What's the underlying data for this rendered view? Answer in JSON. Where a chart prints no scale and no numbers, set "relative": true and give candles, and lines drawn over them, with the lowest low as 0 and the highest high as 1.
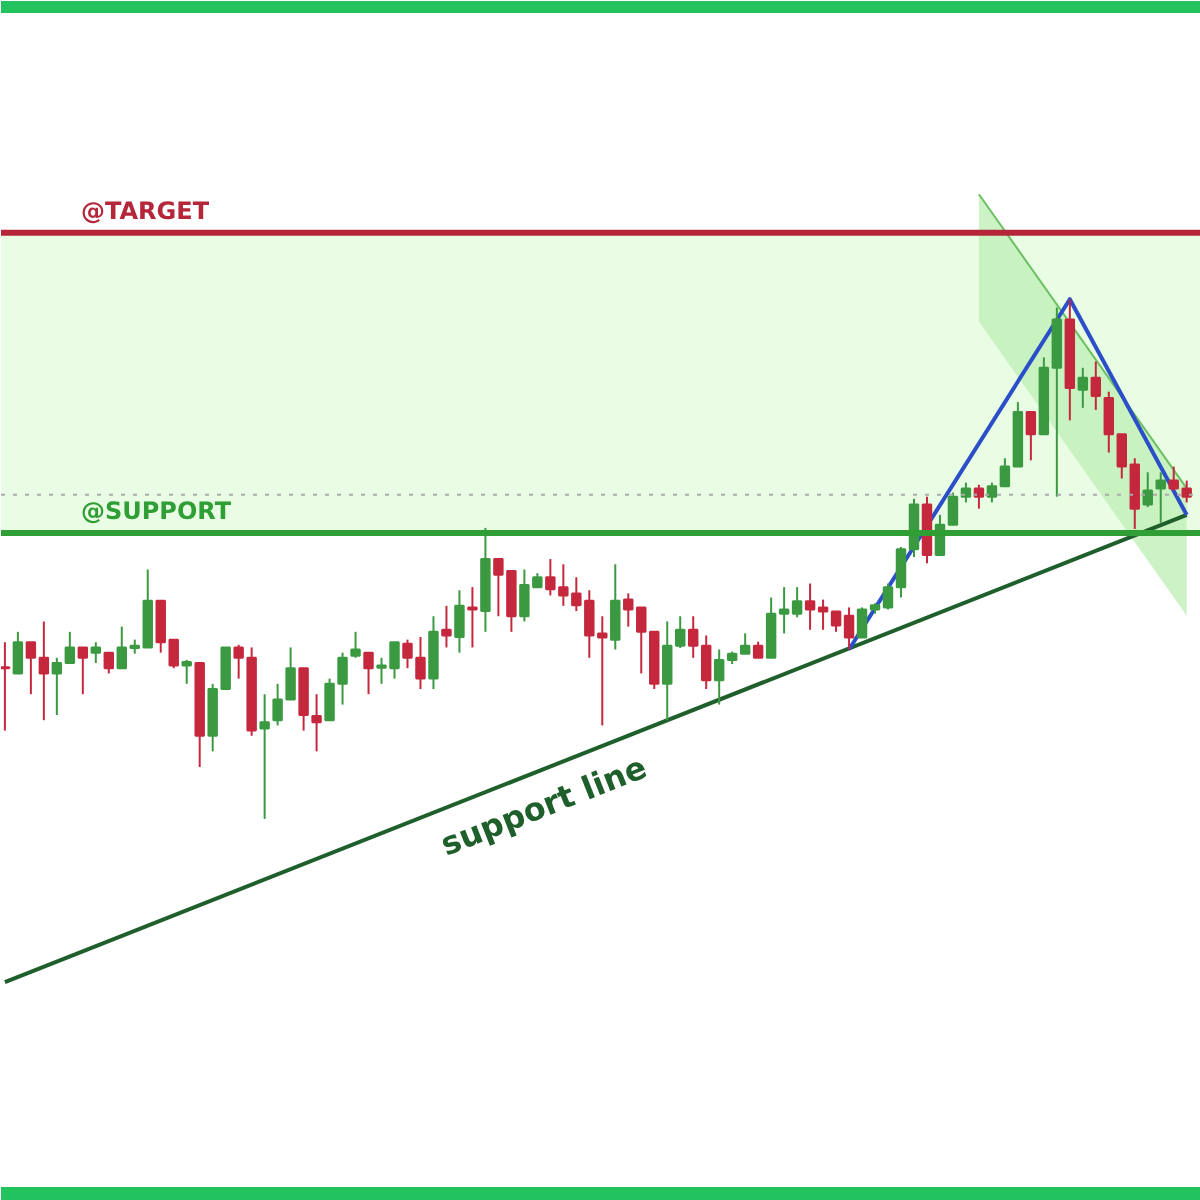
{
  "chart_data": {
    "type": "candlestick",
    "relative": true,
    "categories": [
      null,
      null,
      null,
      null,
      null,
      null,
      null,
      null,
      null,
      null,
      null,
      null,
      null,
      null,
      null,
      null,
      null,
      null,
      null,
      null,
      null,
      null,
      null,
      null,
      null,
      null,
      null,
      null,
      null,
      null,
      null,
      null,
      null,
      null,
      null,
      null,
      null,
      null,
      null,
      null,
      null,
      null,
      null,
      null,
      null,
      null,
      null,
      null,
      null,
      null,
      null,
      null,
      null,
      null,
      null,
      null,
      null,
      null,
      null,
      null,
      null,
      null,
      null,
      null,
      null,
      null,
      null,
      null,
      null,
      null,
      null,
      null,
      null,
      null,
      null,
      null,
      null,
      null,
      null,
      null,
      null,
      null,
      null,
      null,
      null,
      null,
      null,
      null,
      null,
      null,
      null,
      null
    ],
    "ohlc": [
      [
        0.292,
        0.34,
        0.17,
        0.29
      ],
      [
        0.28,
        0.36,
        0.28,
        0.34
      ],
      [
        0.34,
        0.34,
        0.24,
        0.31
      ],
      [
        0.31,
        0.38,
        0.19,
        0.28
      ],
      [
        0.28,
        0.31,
        0.2,
        0.3
      ],
      [
        0.3,
        0.36,
        0.3,
        0.33
      ],
      [
        0.33,
        0.33,
        0.24,
        0.31
      ],
      [
        0.32,
        0.34,
        0.3,
        0.33
      ],
      [
        0.32,
        0.32,
        0.28,
        0.29
      ],
      [
        0.29,
        0.37,
        0.29,
        0.33
      ],
      [
        0.329,
        0.345,
        0.318,
        0.333
      ],
      [
        0.33,
        0.48,
        0.33,
        0.42
      ],
      [
        0.42,
        0.42,
        0.32,
        0.34
      ],
      [
        0.345,
        0.345,
        0.29,
        0.295
      ],
      [
        0.295,
        0.306,
        0.26,
        0.302
      ],
      [
        0.3,
        0.3,
        0.1,
        0.16
      ],
      [
        0.16,
        0.26,
        0.13,
        0.25
      ],
      [
        0.25,
        0.33,
        0.25,
        0.33
      ],
      [
        0.33,
        0.335,
        0.27,
        0.31
      ],
      [
        0.31,
        0.33,
        0.16,
        0.17
      ],
      [
        0.174,
        0.24,
        0,
        0.186
      ],
      [
        0.19,
        0.26,
        0.18,
        0.23
      ],
      [
        0.23,
        0.33,
        0.23,
        0.29
      ],
      [
        0.29,
        0.29,
        0.17,
        0.2
      ],
      [
        0.198,
        0.24,
        0.13,
        0.186
      ],
      [
        0.19,
        0.27,
        0.19,
        0.26
      ],
      [
        0.26,
        0.32,
        0.22,
        0.31
      ],
      [
        0.314,
        0.36,
        0.31,
        0.326
      ],
      [
        0.32,
        0.32,
        0.24,
        0.29
      ],
      [
        0.291,
        0.31,
        0.26,
        0.295
      ],
      [
        0.29,
        0.34,
        0.27,
        0.34
      ],
      [
        0.337,
        0.345,
        0.29,
        0.31
      ],
      [
        0.31,
        0.35,
        0.25,
        0.27
      ],
      [
        0.27,
        0.39,
        0.25,
        0.36
      ],
      [
        0.364,
        0.41,
        0.33,
        0.353
      ],
      [
        0.35,
        0.44,
        0.32,
        0.41
      ],
      [
        0.407,
        0.446,
        0.33,
        0.403
      ],
      [
        0.4,
        0.56,
        0.36,
        0.5
      ],
      [
        0.5,
        0.5,
        0.39,
        0.47
      ],
      [
        0.477,
        0.477,
        0.36,
        0.39
      ],
      [
        0.39,
        0.48,
        0.38,
        0.45
      ],
      [
        0.446,
        0.473,
        0.446,
        0.465
      ],
      [
        0.465,
        0.5,
        0.43,
        0.442
      ],
      [
        0.446,
        0.49,
        0.41,
        0.43
      ],
      [
        0.434,
        0.465,
        0.4,
        0.411
      ],
      [
        0.42,
        0.44,
        0.31,
        0.353
      ],
      [
        0.357,
        0.39,
        0.18,
        0.349
      ],
      [
        0.345,
        0.49,
        0.326,
        0.42
      ],
      [
        0.422,
        0.434,
        0.37,
        0.403
      ],
      [
        0.407,
        0.407,
        0.28,
        0.36
      ],
      [
        0.36,
        0.36,
        0.25,
        0.26
      ],
      [
        0.26,
        0.38,
        0.19,
        0.333
      ],
      [
        0.333,
        0.39,
        0.329,
        0.364
      ],
      [
        0.364,
        0.39,
        0.31,
        0.333
      ],
      [
        0.333,
        0.353,
        0.25,
        0.267
      ],
      [
        0.267,
        0.326,
        0.22,
        0.306
      ],
      [
        0.306,
        0.322,
        0.298,
        0.318
      ],
      [
        0.318,
        0.357,
        0.318,
        0.333
      ],
      [
        0.333,
        0.341,
        0.31,
        0.31
      ],
      [
        0.31,
        0.426,
        0.31,
        0.395
      ],
      [
        0.395,
        0.446,
        0.357,
        0.403
      ],
      [
        0.395,
        0.446,
        0.388,
        0.419
      ],
      [
        0.419,
        0.453,
        0.364,
        0.403
      ],
      [
        0.407,
        0.422,
        0.364,
        0.399
      ],
      [
        0.399,
        0.399,
        0.36,
        0.372
      ],
      [
        0.391,
        0.407,
        0.326,
        0.349
      ],
      [
        0.349,
        0.407,
        0.349,
        0.403
      ],
      [
        0.403,
        0.415,
        0.395,
        0.411
      ],
      [
        0.407,
        0.453,
        0.403,
        0.446
      ],
      [
        0.446,
        0.523,
        0.426,
        0.519
      ],
      [
        0.519,
        0.616,
        0.504,
        0.605
      ],
      [
        0.605,
        0.62,
        0.492,
        0.508
      ],
      [
        0.508,
        0.585,
        0.508,
        0.566
      ],
      [
        0.566,
        0.628,
        0.566,
        0.62
      ],
      [
        0.62,
        0.647,
        0.609,
        0.636
      ],
      [
        0.636,
        0.643,
        0.597,
        0.62
      ],
      [
        0.62,
        0.647,
        0.609,
        0.64
      ],
      [
        0.64,
        0.694,
        0.64,
        0.678
      ],
      [
        0.678,
        0.802,
        0.678,
        0.783
      ],
      [
        0.783,
        0.783,
        0.69,
        0.74
      ],
      [
        0.74,
        0.888,
        0.74,
        0.868
      ],
      [
        0.868,
        0.984,
        0.62,
        0.961
      ],
      [
        0.961,
        1,
        0.767,
        0.829
      ],
      [
        0.826,
        0.868,
        0.791,
        0.849
      ],
      [
        0.849,
        0.88,
        0.787,
        0.814
      ],
      [
        0.81,
        0.822,
        0.705,
        0.74
      ],
      [
        0.74,
        0.74,
        0.655,
        0.678
      ],
      [
        0.682,
        0.694,
        0.558,
        0.597
      ],
      [
        0.605,
        0.667,
        0.6,
        0.632
      ],
      [
        0.636,
        0.667,
        0.57,
        0.651
      ],
      [
        0.651,
        0.678,
        0.632,
        0.636
      ],
      [
        0.636,
        0.651,
        0.609,
        0.62
      ]
    ],
    "colors": [
      "#c5283d",
      "#3b9a41",
      "#c5283d",
      "#c5283d",
      "#3b9a41",
      "#3b9a41",
      "#c5283d",
      "#3b9a41",
      "#c5283d",
      "#3b9a41",
      "#3b9a41",
      "#3b9a41",
      "#c5283d",
      "#c5283d",
      "#3b9a41",
      "#c5283d",
      "#3b9a41",
      "#3b9a41",
      "#c5283d",
      "#c5283d",
      "#3b9a41",
      "#3b9a41",
      "#3b9a41",
      "#c5283d",
      "#c5283d",
      "#3b9a41",
      "#3b9a41",
      "#3b9a41",
      "#c5283d",
      "#3b9a41",
      "#3b9a41",
      "#c5283d",
      "#c5283d",
      "#3b9a41",
      "#c5283d",
      "#3b9a41",
      "#c5283d",
      "#3b9a41",
      "#c5283d",
      "#c5283d",
      "#3b9a41",
      "#3b9a41",
      "#c5283d",
      "#c5283d",
      "#c5283d",
      "#c5283d",
      "#c5283d",
      "#3b9a41",
      "#c5283d",
      "#c5283d",
      "#c5283d",
      "#3b9a41",
      "#3b9a41",
      "#c5283d",
      "#c5283d",
      "#3b9a41",
      "#3b9a41",
      "#3b9a41",
      "#c5283d",
      "#3b9a41",
      "#3b9a41",
      "#3b9a41",
      "#c5283d",
      "#c5283d",
      "#c5283d",
      "#c5283d",
      "#3b9a41",
      "#3b9a41",
      "#3b9a41",
      "#3b9a41",
      "#3b9a41",
      "#c5283d",
      "#3b9a41",
      "#3b9a41",
      "#3b9a41",
      "#c5283d",
      "#3b9a41",
      "#3b9a41",
      "#3b9a41",
      "#c5283d",
      "#3b9a41",
      "#3b9a41",
      "#c5283d",
      "#3b9a41",
      "#c5283d",
      "#c5283d",
      "#c5283d",
      "#c5283d",
      "#3b9a41",
      "#3b9a41",
      "#c5283d",
      "#c5283d"
    ],
    "series": [
      {
        "type": "line",
        "color": "#6dbf63",
        "line_style": "solid",
        "upper": [
          null,
          null,
          null,
          null,
          null,
          null,
          null,
          null,
          null,
          null,
          null,
          null,
          null,
          null,
          null,
          null,
          null,
          null,
          null,
          null,
          null,
          null,
          null,
          null,
          null,
          null,
          null,
          null,
          null,
          null,
          null,
          null,
          null,
          null,
          null,
          null,
          null,
          null,
          null,
          null,
          null,
          null,
          null,
          null,
          null,
          null,
          null,
          null,
          null,
          null,
          null,
          null,
          null,
          null,
          null,
          null,
          null,
          null,
          null,
          null,
          null,
          null,
          null,
          null,
          null,
          null,
          null,
          null,
          null,
          null,
          null,
          null,
          null,
          null,
          null,
          1.202,
          null,
          null,
          null,
          null,
          null,
          null,
          null,
          null,
          null,
          null,
          null,
          null,
          null,
          null,
          null,
          0.636
        ],
        "values": [
          null,
          null,
          null,
          null,
          null,
          null,
          null,
          null,
          null,
          null,
          null,
          null,
          null,
          null,
          null,
          null,
          null,
          null,
          null,
          null,
          null,
          null,
          null,
          null,
          null,
          null,
          null,
          null,
          null,
          null,
          null,
          null,
          null,
          null,
          null,
          null,
          null,
          null,
          null,
          null,
          null,
          null,
          null,
          null,
          null,
          null,
          null,
          null,
          null,
          null,
          null,
          null,
          null,
          null,
          null,
          null,
          null,
          null,
          null,
          null,
          null,
          null,
          null,
          null,
          null,
          null,
          null,
          null,
          null,
          null,
          null,
          null,
          null,
          null,
          null,
          1.202,
          null,
          null,
          null,
          null,
          null,
          null,
          null,
          null,
          null,
          null,
          null,
          null,
          null,
          null,
          null,
          0.636
        ],
        "lower": [
          null,
          null,
          null,
          null,
          null,
          null,
          null,
          null,
          null,
          null,
          null,
          null,
          null,
          null,
          null,
          null,
          null,
          null,
          null,
          null,
          null,
          null,
          null,
          null,
          null,
          null,
          null,
          null,
          null,
          null,
          null,
          null,
          null,
          null,
          null,
          null,
          null,
          null,
          null,
          null,
          null,
          null,
          null,
          null,
          null,
          null,
          null,
          null,
          null,
          null,
          null,
          null,
          null,
          null,
          null,
          null,
          null,
          null,
          null,
          null,
          null,
          null,
          null,
          null,
          null,
          null,
          null,
          null,
          null,
          null,
          null,
          null,
          null,
          null,
          null,
          0.957,
          null,
          null,
          null,
          null,
          null,
          null,
          null,
          null,
          null,
          null,
          null,
          null,
          null,
          null,
          null,
          0.391
        ]
      },
      {
        "type": "line",
        "name": "support line",
        "color": "#1f5f2b",
        "values": [
          -0.314,
          null,
          null,
          null,
          null,
          null,
          null,
          null,
          null,
          null,
          null,
          null,
          null,
          null,
          null,
          null,
          null,
          null,
          null,
          null,
          null,
          null,
          null,
          null,
          null,
          null,
          null,
          null,
          null,
          null,
          null,
          null,
          null,
          null,
          null,
          null,
          null,
          null,
          null,
          null,
          null,
          null,
          null,
          null,
          null,
          null,
          null,
          null,
          null,
          null,
          null,
          null,
          null,
          null,
          null,
          null,
          null,
          null,
          null,
          null,
          null,
          null,
          null,
          null,
          null,
          null,
          null,
          null,
          null,
          null,
          null,
          null,
          null,
          null,
          null,
          null,
          null,
          null,
          null,
          null,
          null,
          null,
          null,
          null,
          null,
          null,
          null,
          null,
          null,
          null,
          null,
          0.585
        ]
      },
      {
        "type": "line",
        "color": "#2a4fc8",
        "values": [
          null,
          null,
          null,
          null,
          null,
          null,
          null,
          null,
          null,
          null,
          null,
          null,
          null,
          null,
          null,
          null,
          null,
          null,
          null,
          null,
          null,
          null,
          null,
          null,
          null,
          null,
          null,
          null,
          null,
          null,
          null,
          null,
          null,
          null,
          null,
          null,
          null,
          null,
          null,
          null,
          null,
          null,
          null,
          null,
          null,
          null,
          null,
          null,
          null,
          null,
          null,
          null,
          null,
          null,
          null,
          null,
          null,
          null,
          null,
          null,
          null,
          null,
          null,
          null,
          null,
          0.326,
          null,
          null,
          null,
          null,
          null,
          null,
          null,
          null,
          null,
          null,
          null,
          null,
          null,
          null,
          null,
          null,
          1.0,
          null,
          null,
          null,
          null,
          null,
          null,
          null,
          null,
          0.585
        ]
      }
    ],
    "bands": [
      {
        "axis": "y",
        "from": 0.55,
        "to": 1.128,
        "color": "#e9fce4"
      }
    ],
    "ref_lines": [
      {
        "axis": "y",
        "value": 1.128,
        "label": "@TARGET",
        "color": "#b5263a"
      },
      {
        "axis": "y",
        "value": 0.55,
        "label": "@SUPPORT",
        "color": "#2e9e35"
      },
      {
        "axis": "y",
        "value": 0.624,
        "label": null,
        "color": "#aaaaaa",
        "line_style": "dotted"
      }
    ]
  }
}
